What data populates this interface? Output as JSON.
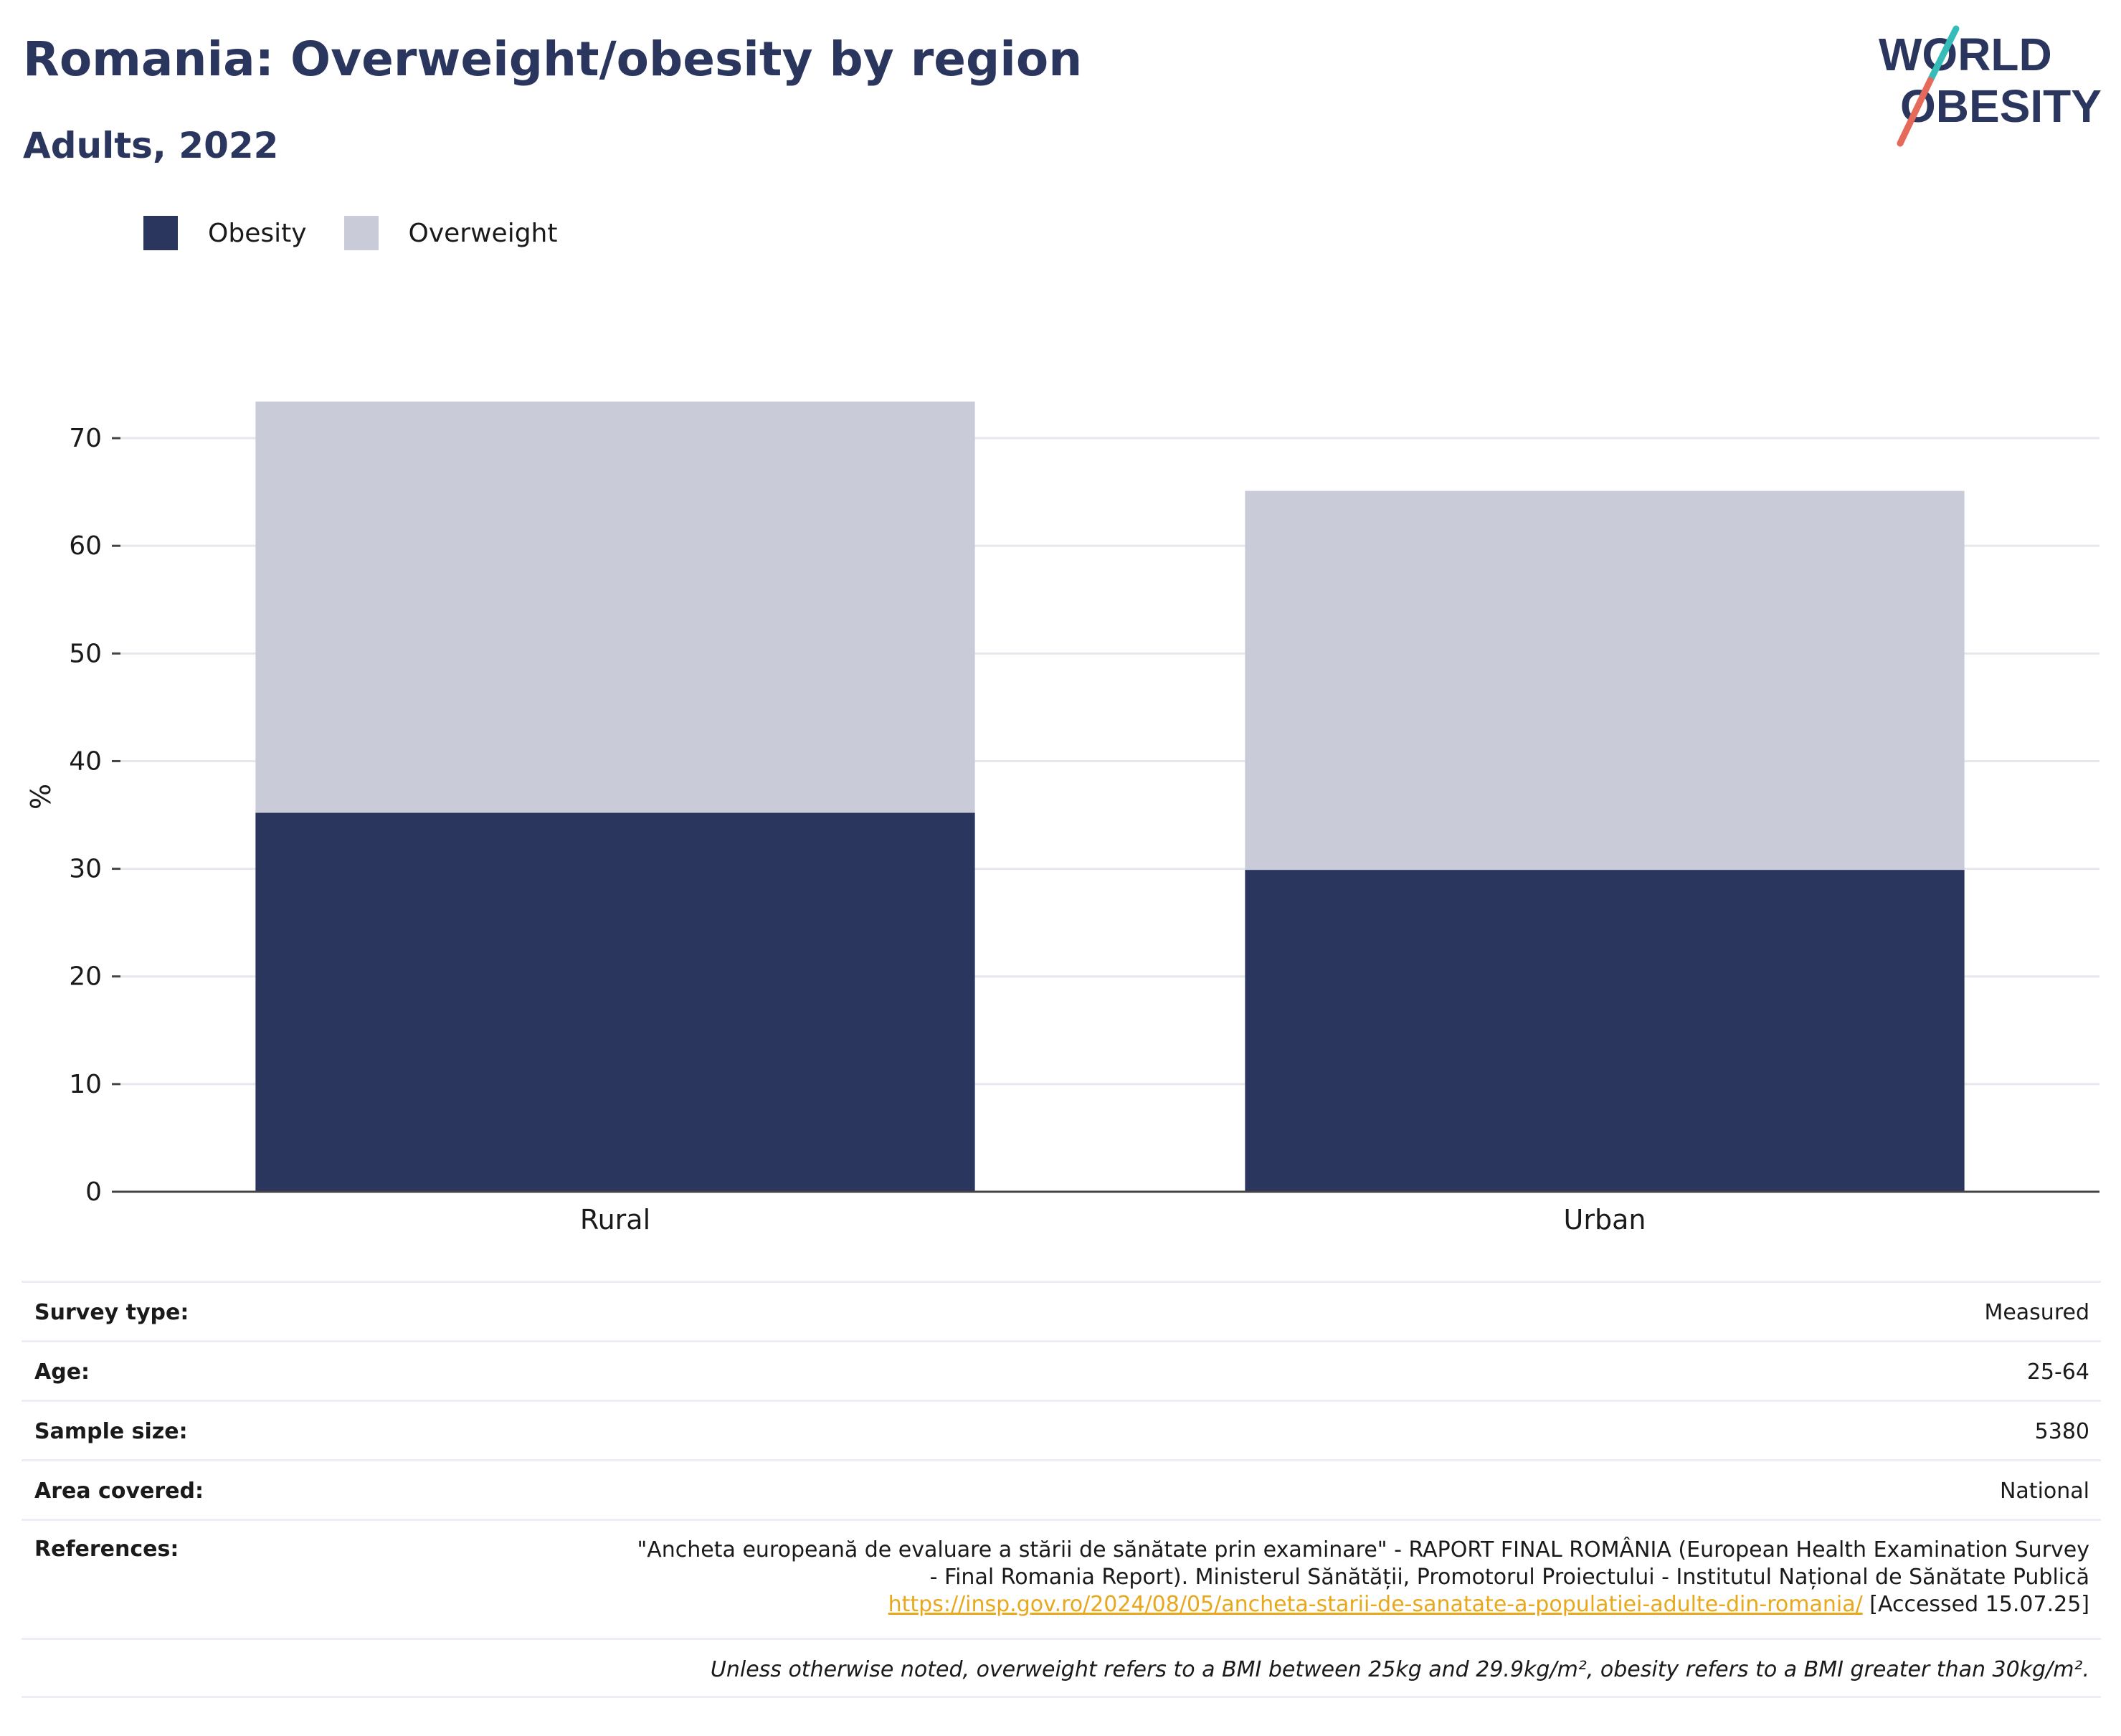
{
  "header": {
    "title": "Romania: Overweight/obesity by region",
    "subtitle": "Adults, 2022",
    "logo_text_top": "WORLD",
    "logo_text_bottom": "OBESITY"
  },
  "legend": [
    {
      "label": "Obesity",
      "color": "#2b365f"
    },
    {
      "label": "Overweight",
      "color": "#c9ccd8"
    }
  ],
  "chart_data": {
    "type": "bar",
    "stacked": true,
    "categories": [
      "Rural",
      "Urban"
    ],
    "series": [
      {
        "name": "Obesity",
        "color": "#2b365f",
        "values": [
          35.2,
          29.9
        ]
      },
      {
        "name": "Overweight",
        "color": "#c9ccd8",
        "values": [
          38.2,
          35.2
        ]
      }
    ],
    "ylabel": "%",
    "xlabel": "",
    "ylim": [
      0,
      73.4
    ],
    "yticks": [
      0,
      10,
      20,
      30,
      40,
      50,
      60,
      70
    ],
    "grid": true,
    "legend_position": "top-left"
  },
  "meta": {
    "survey_type_label": "Survey type:",
    "survey_type": "Measured",
    "age_label": "Age:",
    "age": "25-64",
    "sample_size_label": "Sample size:",
    "sample_size": "5380",
    "area_label": "Area covered:",
    "area": "National",
    "references_label": "References:",
    "references_line1": "\"Ancheta europeană de evaluare a stării de sănătate prin examinare\" - RAPORT FINAL ROMÂNIA (European Health Examination Survey",
    "references_line2": "- Final Romania Report). Ministerul Sănătății, Promotorul Proiectului - Institutul Național de Sănătate Publică",
    "references_link": "https://insp.gov.ro/2024/08/05/ancheta-starii-de-sanatate-a-populatiei-adulte-din-romania/",
    "references_accessed": " [Accessed 15.07.25]",
    "note": "Unless otherwise noted, overweight refers to a BMI between 25kg and 29.9kg/m², obesity refers to a BMI greater than 30kg/m²."
  }
}
